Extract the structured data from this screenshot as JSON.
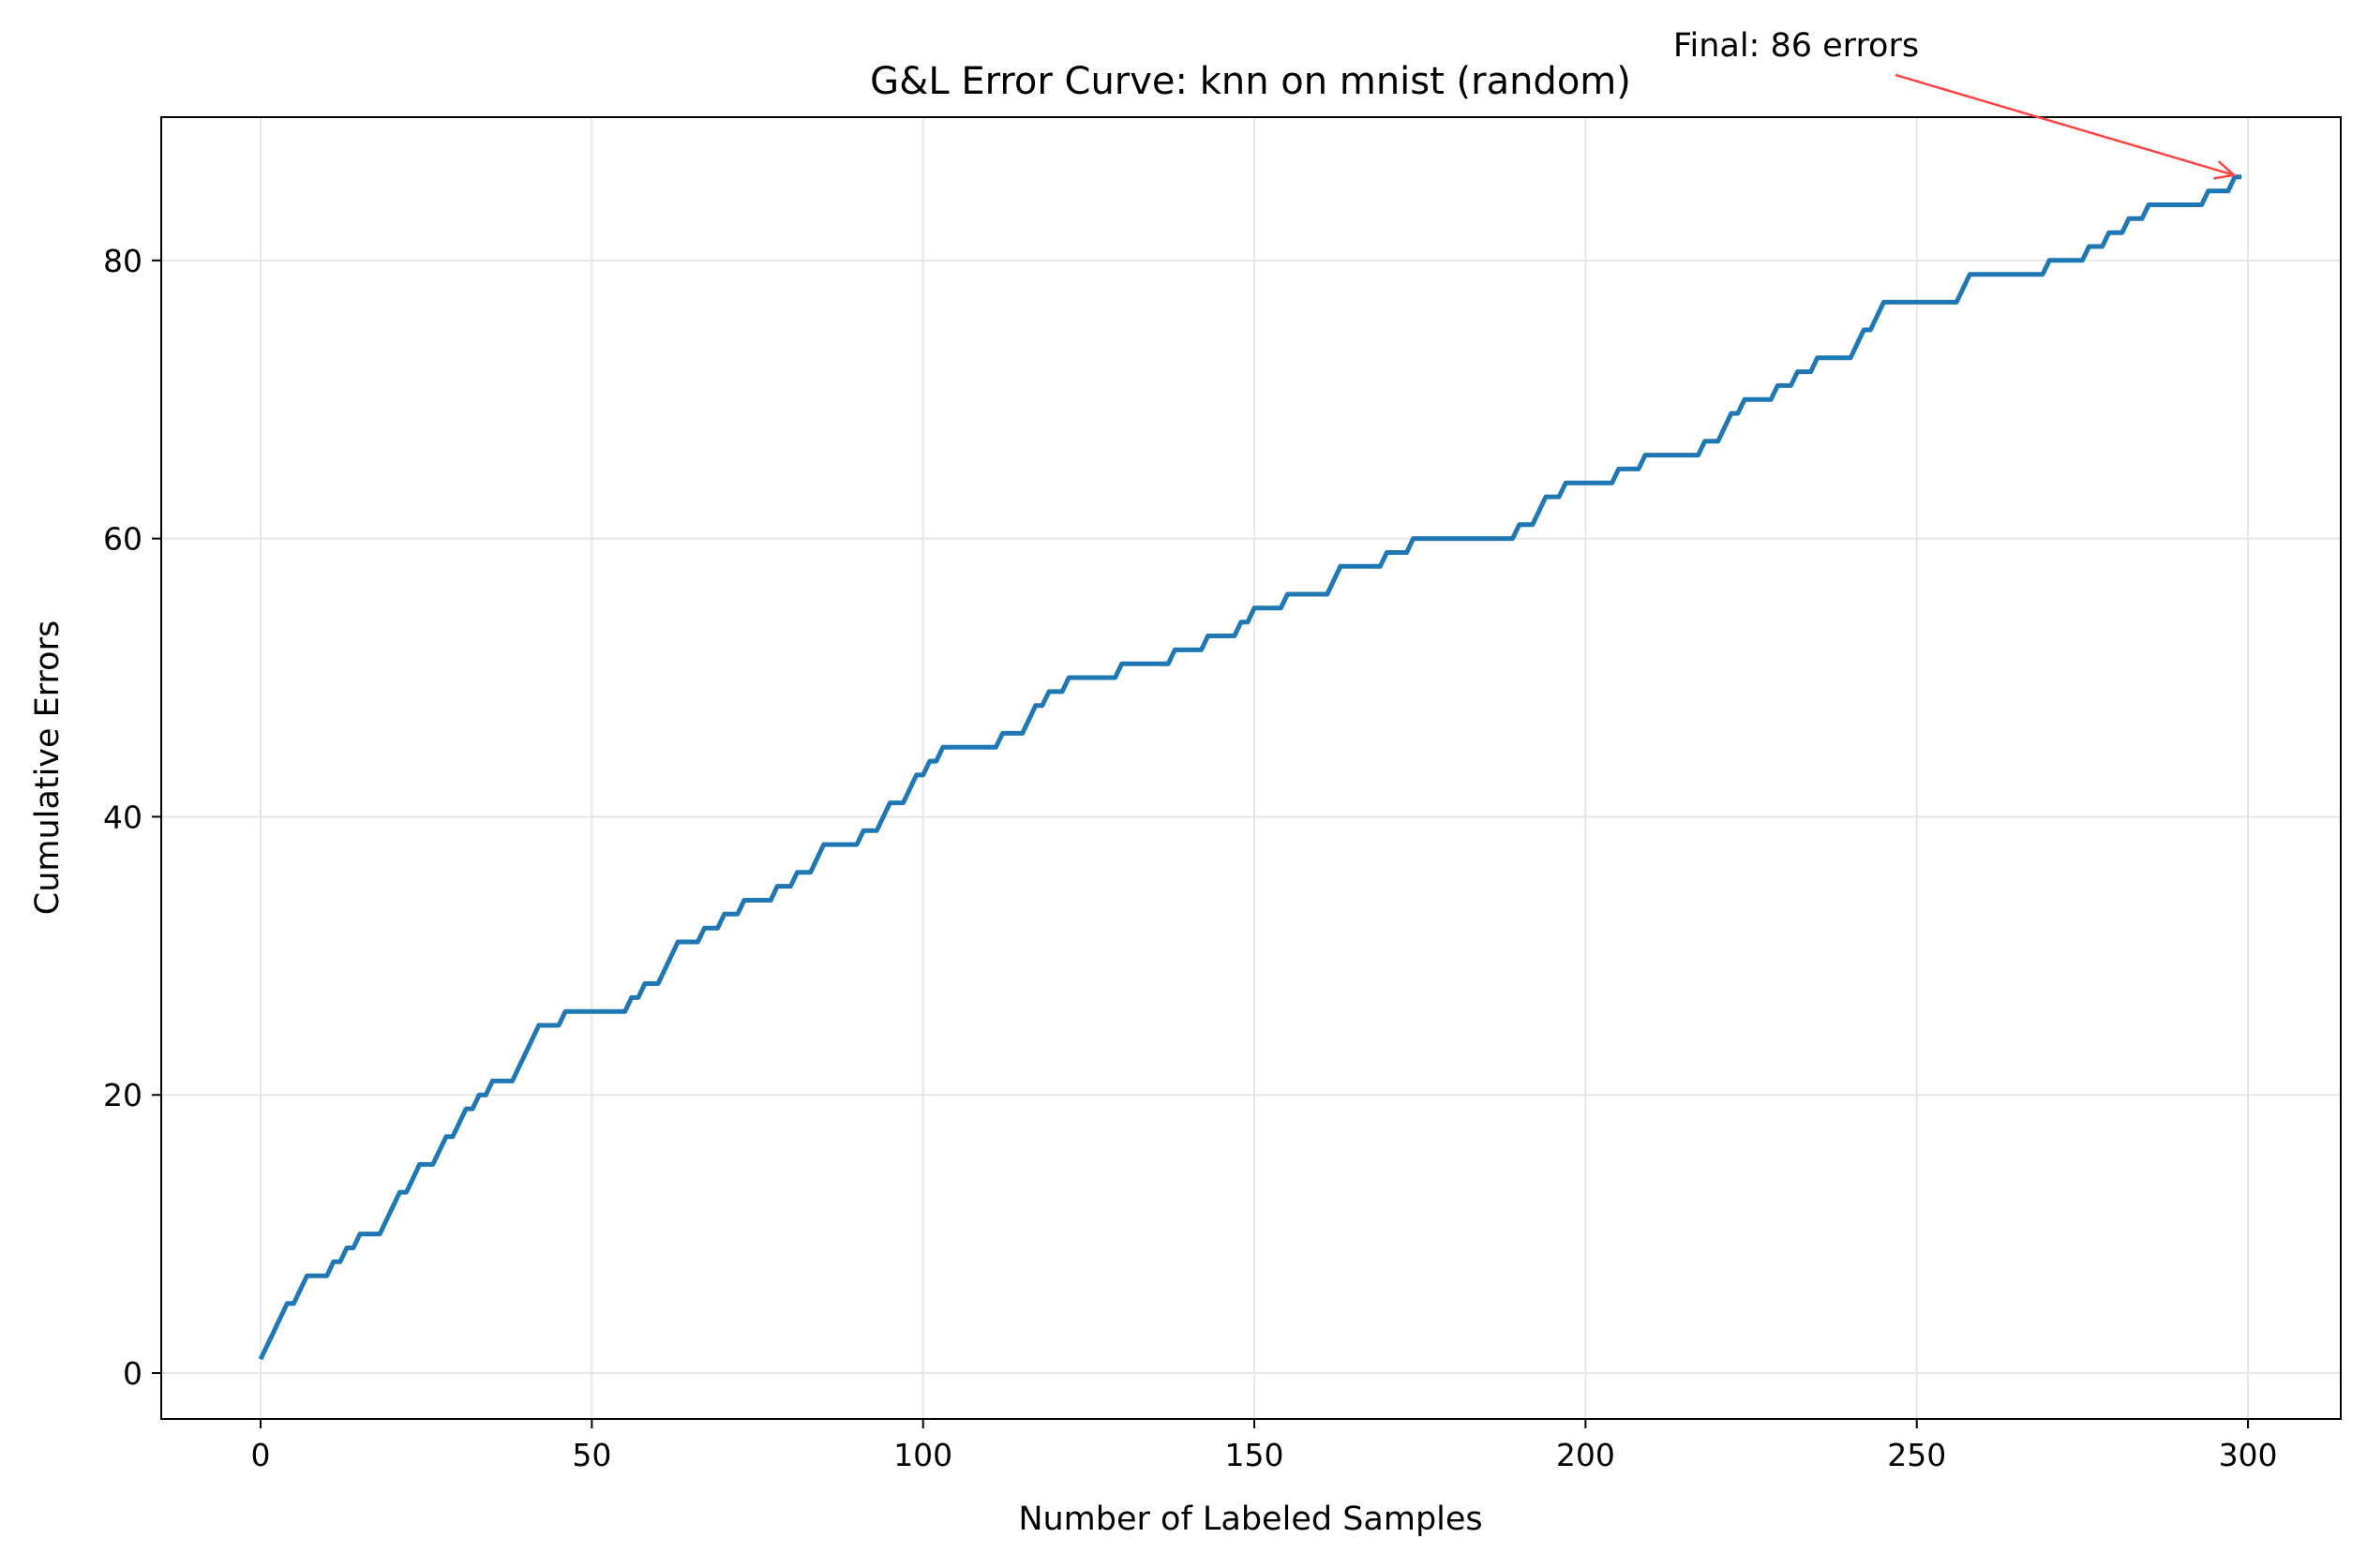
{
  "chart_data": {
    "type": "line",
    "title": "G&L Error Curve: knn on mnist (random)",
    "xlabel": "Number of Labeled Samples",
    "ylabel": "Cumulative Errors",
    "xlim": [
      -15,
      314
    ],
    "ylim": [
      -3.3,
      90.3
    ],
    "xticks": [
      0,
      50,
      100,
      150,
      200,
      250,
      300
    ],
    "yticks": [
      0,
      20,
      40,
      60,
      80
    ],
    "grid": true,
    "legend": "none",
    "colors": {
      "line": "#1f77b4",
      "annotation": "#ff4444",
      "grid": "#e6e6e6"
    },
    "series": [
      {
        "points": [
          [
            0,
            1
          ],
          [
            4,
            5
          ],
          [
            5,
            5
          ],
          [
            7,
            7
          ],
          [
            10,
            7
          ],
          [
            11,
            8
          ],
          [
            12,
            8
          ],
          [
            13,
            9
          ],
          [
            14,
            9
          ],
          [
            15,
            10
          ],
          [
            18,
            10
          ],
          [
            21,
            13
          ],
          [
            22,
            13
          ],
          [
            24,
            15
          ],
          [
            26,
            15
          ],
          [
            28,
            17
          ],
          [
            29,
            17
          ],
          [
            31,
            19
          ],
          [
            32,
            19
          ],
          [
            33,
            20
          ],
          [
            34,
            20
          ],
          [
            35,
            21
          ],
          [
            38,
            21
          ],
          [
            42,
            25
          ],
          [
            45,
            25
          ],
          [
            46,
            26
          ],
          [
            55,
            26
          ],
          [
            56,
            27
          ],
          [
            57,
            27
          ],
          [
            58,
            28
          ],
          [
            60,
            28
          ],
          [
            63,
            31
          ],
          [
            66,
            31
          ],
          [
            67,
            32
          ],
          [
            69,
            32
          ],
          [
            70,
            33
          ],
          [
            72,
            33
          ],
          [
            73,
            34
          ],
          [
            77,
            34
          ],
          [
            78,
            35
          ],
          [
            80,
            35
          ],
          [
            81,
            36
          ],
          [
            83,
            36
          ],
          [
            85,
            38
          ],
          [
            90,
            38
          ],
          [
            91,
            39
          ],
          [
            93,
            39
          ],
          [
            95,
            41
          ],
          [
            97,
            41
          ],
          [
            99,
            43
          ],
          [
            100,
            43
          ],
          [
            101,
            44
          ],
          [
            102,
            44
          ],
          [
            103,
            45
          ],
          [
            111,
            45
          ],
          [
            112,
            46
          ],
          [
            115,
            46
          ],
          [
            117,
            48
          ],
          [
            118,
            48
          ],
          [
            119,
            49
          ],
          [
            121,
            49
          ],
          [
            122,
            50
          ],
          [
            129,
            50
          ],
          [
            130,
            51
          ],
          [
            137,
            51
          ],
          [
            138,
            52
          ],
          [
            142,
            52
          ],
          [
            143,
            53
          ],
          [
            147,
            53
          ],
          [
            148,
            54
          ],
          [
            149,
            54
          ],
          [
            150,
            55
          ],
          [
            154,
            55
          ],
          [
            155,
            56
          ],
          [
            161,
            56
          ],
          [
            163,
            58
          ],
          [
            169,
            58
          ],
          [
            170,
            59
          ],
          [
            173,
            59
          ],
          [
            174,
            60
          ],
          [
            189,
            60
          ],
          [
            190,
            61
          ],
          [
            192,
            61
          ],
          [
            194,
            63
          ],
          [
            196,
            63
          ],
          [
            197,
            64
          ],
          [
            204,
            64
          ],
          [
            205,
            65
          ],
          [
            208,
            65
          ],
          [
            209,
            66
          ],
          [
            217,
            66
          ],
          [
            218,
            67
          ],
          [
            220,
            67
          ],
          [
            222,
            69
          ],
          [
            223,
            69
          ],
          [
            224,
            70
          ],
          [
            228,
            70
          ],
          [
            229,
            71
          ],
          [
            231,
            71
          ],
          [
            232,
            72
          ],
          [
            234,
            72
          ],
          [
            235,
            73
          ],
          [
            240,
            73
          ],
          [
            241,
            74
          ],
          [
            242,
            75
          ],
          [
            243,
            75
          ],
          [
            245,
            77
          ],
          [
            256,
            77
          ],
          [
            258,
            79
          ],
          [
            269,
            79
          ],
          [
            270,
            80
          ],
          [
            275,
            80
          ],
          [
            276,
            81
          ],
          [
            278,
            81
          ],
          [
            279,
            82
          ],
          [
            281,
            82
          ],
          [
            282,
            83
          ],
          [
            284,
            83
          ],
          [
            285,
            84
          ],
          [
            293,
            84
          ],
          [
            294,
            85
          ],
          [
            297,
            85
          ],
          [
            298,
            86
          ],
          [
            299,
            86
          ]
        ]
      }
    ],
    "annotation": {
      "text": "Final: 86 errors",
      "x": 299,
      "y": 86
    }
  }
}
